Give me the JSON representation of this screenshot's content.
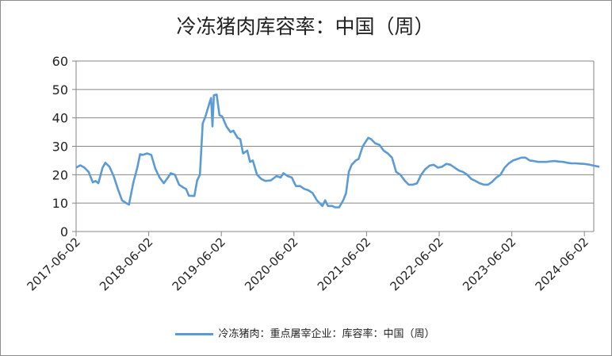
{
  "chart_data": {
    "type": "line",
    "title": "冷冻猪肉库容率：中国（周）",
    "xlabel": "",
    "ylabel": "",
    "ylim": [
      0,
      60
    ],
    "yticks": [
      "0",
      "10",
      "20",
      "30",
      "40",
      "50",
      "60"
    ],
    "xticks": [
      "2017-06-02",
      "2018-06-02",
      "2019-06-02",
      "2020-06-02",
      "2021-06-02",
      "2022-06-02",
      "2023-06-02",
      "2024-06-02"
    ],
    "grid": true,
    "legend_position": "bottom",
    "series": [
      {
        "name": "冷冻猪肉：重点屠宰企业：库容率：中国（周）",
        "color": "#5b9bd5",
        "points": [
          [
            "2017-06-02",
            22.5
          ],
          [
            "2017-06-23",
            23.3
          ],
          [
            "2017-07-14",
            22.5
          ],
          [
            "2017-08-04",
            21.0
          ],
          [
            "2017-08-25",
            17.3
          ],
          [
            "2017-09-08",
            17.8
          ],
          [
            "2017-09-22",
            17.0
          ],
          [
            "2017-10-13",
            22.5
          ],
          [
            "2017-10-27",
            24.2
          ],
          [
            "2017-11-17",
            22.8
          ],
          [
            "2017-12-08",
            19.5
          ],
          [
            "2017-12-29",
            15.0
          ],
          [
            "2018-01-19",
            11.0
          ],
          [
            "2018-02-09",
            10.0
          ],
          [
            "2018-02-23",
            9.5
          ],
          [
            "2018-03-16",
            17.0
          ],
          [
            "2018-04-06",
            22.5
          ],
          [
            "2018-04-20",
            27.2
          ],
          [
            "2018-05-04",
            27.0
          ],
          [
            "2018-05-25",
            27.5
          ],
          [
            "2018-06-15",
            27.0
          ],
          [
            "2018-07-06",
            22.0
          ],
          [
            "2018-07-27",
            19.0
          ],
          [
            "2018-08-17",
            17.0
          ],
          [
            "2018-09-07",
            19.0
          ],
          [
            "2018-09-21",
            20.5
          ],
          [
            "2018-10-12",
            20.0
          ],
          [
            "2018-11-02",
            16.5
          ],
          [
            "2018-11-23",
            15.5
          ],
          [
            "2018-12-07",
            15.0
          ],
          [
            "2018-12-21",
            12.6
          ],
          [
            "2019-01-18",
            12.5
          ],
          [
            "2019-02-01",
            18.0
          ],
          [
            "2019-02-15",
            20.0
          ],
          [
            "2019-03-01",
            38.0
          ],
          [
            "2019-03-15",
            40.5
          ],
          [
            "2019-04-05",
            45.5
          ],
          [
            "2019-04-12",
            47.0
          ],
          [
            "2019-04-19",
            37.0
          ],
          [
            "2019-04-26",
            48.0
          ],
          [
            "2019-05-10",
            48.2
          ],
          [
            "2019-05-24",
            41.0
          ],
          [
            "2019-06-07",
            40.5
          ],
          [
            "2019-06-28",
            37.0
          ],
          [
            "2019-07-19",
            35.0
          ],
          [
            "2019-08-02",
            35.5
          ],
          [
            "2019-08-23",
            33.0
          ],
          [
            "2019-09-06",
            32.5
          ],
          [
            "2019-09-20",
            27.5
          ],
          [
            "2019-10-11",
            28.5
          ],
          [
            "2019-10-25",
            24.5
          ],
          [
            "2019-11-08",
            25.0
          ],
          [
            "2019-11-29",
            20.0
          ],
          [
            "2019-12-20",
            18.5
          ],
          [
            "2020-01-10",
            17.8
          ],
          [
            "2020-02-07",
            18.0
          ],
          [
            "2020-03-06",
            19.5
          ],
          [
            "2020-03-27",
            19.0
          ],
          [
            "2020-04-10",
            20.5
          ],
          [
            "2020-05-01",
            19.5
          ],
          [
            "2020-05-22",
            19.0
          ],
          [
            "2020-06-12",
            16.0
          ],
          [
            "2020-07-03",
            16.0
          ],
          [
            "2020-07-24",
            15.0
          ],
          [
            "2020-08-14",
            14.5
          ],
          [
            "2020-09-04",
            13.5
          ],
          [
            "2020-09-25",
            11.0
          ],
          [
            "2020-10-09",
            10.0
          ],
          [
            "2020-10-23",
            9.0
          ],
          [
            "2020-11-06",
            11.0
          ],
          [
            "2020-11-20",
            9.0
          ],
          [
            "2020-12-11",
            9.0
          ],
          [
            "2020-12-25",
            8.5
          ],
          [
            "2021-01-15",
            8.5
          ],
          [
            "2021-02-05",
            11.0
          ],
          [
            "2021-02-19",
            13.5
          ],
          [
            "2021-03-05",
            21.0
          ],
          [
            "2021-03-19",
            23.5
          ],
          [
            "2021-04-09",
            25.0
          ],
          [
            "2021-04-23",
            25.5
          ],
          [
            "2021-05-14",
            30.0
          ],
          [
            "2021-05-28",
            31.5
          ],
          [
            "2021-06-11",
            33.0
          ],
          [
            "2021-06-25",
            32.5
          ],
          [
            "2021-07-16",
            31.0
          ],
          [
            "2021-08-06",
            30.5
          ],
          [
            "2021-08-27",
            28.5
          ],
          [
            "2021-09-17",
            27.5
          ],
          [
            "2021-10-08",
            26.0
          ],
          [
            "2021-10-29",
            21.0
          ],
          [
            "2021-11-19",
            20.0
          ],
          [
            "2021-12-10",
            18.0
          ],
          [
            "2021-12-31",
            16.5
          ],
          [
            "2022-01-21",
            16.5
          ],
          [
            "2022-02-11",
            17.0
          ],
          [
            "2022-03-04",
            20.0
          ],
          [
            "2022-03-25",
            22.0
          ],
          [
            "2022-04-15",
            23.2
          ],
          [
            "2022-05-06",
            23.5
          ],
          [
            "2022-05-27",
            22.5
          ],
          [
            "2022-06-17",
            22.8
          ],
          [
            "2022-07-08",
            23.8
          ],
          [
            "2022-07-29",
            23.5
          ],
          [
            "2022-08-19",
            22.5
          ],
          [
            "2022-09-09",
            21.5
          ],
          [
            "2022-09-30",
            21.0
          ],
          [
            "2022-10-21",
            20.0
          ],
          [
            "2022-11-11",
            18.5
          ],
          [
            "2022-12-02",
            17.8
          ],
          [
            "2022-12-23",
            17.0
          ],
          [
            "2023-01-13",
            16.5
          ],
          [
            "2023-02-03",
            16.5
          ],
          [
            "2023-02-24",
            17.5
          ],
          [
            "2023-03-17",
            19.0
          ],
          [
            "2023-04-07",
            20.0
          ],
          [
            "2023-04-28",
            22.5
          ],
          [
            "2023-05-19",
            24.0
          ],
          [
            "2023-06-09",
            25.0
          ],
          [
            "2023-06-30",
            25.5
          ],
          [
            "2023-07-21",
            26.0
          ],
          [
            "2023-08-11",
            26.0
          ],
          [
            "2023-09-01",
            25.0
          ],
          [
            "2023-09-22",
            24.8
          ],
          [
            "2023-10-13",
            24.5
          ],
          [
            "2023-11-03",
            24.5
          ],
          [
            "2023-11-24",
            24.5
          ],
          [
            "2023-12-15",
            24.7
          ],
          [
            "2024-01-05",
            24.8
          ],
          [
            "2024-01-26",
            24.6
          ],
          [
            "2024-02-16",
            24.5
          ],
          [
            "2024-03-08",
            24.2
          ],
          [
            "2024-03-29",
            24.0
          ],
          [
            "2024-04-19",
            24.0
          ],
          [
            "2024-05-10",
            23.9
          ],
          [
            "2024-05-31",
            23.8
          ],
          [
            "2024-06-21",
            23.6
          ],
          [
            "2024-07-12",
            23.3
          ],
          [
            "2024-08-02",
            23.0
          ],
          [
            "2024-08-16",
            22.8
          ]
        ]
      }
    ]
  }
}
